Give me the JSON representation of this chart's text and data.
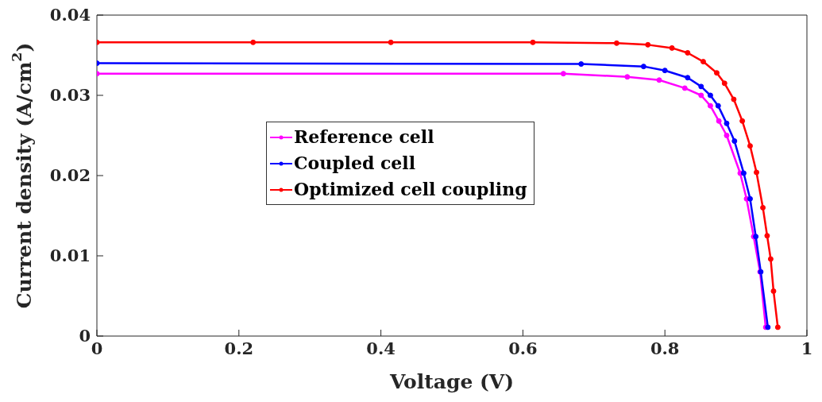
{
  "chart_data": {
    "type": "line",
    "xlabel": "Voltage (V)",
    "ylabel": "Current density (A/cm$^{2}$)",
    "xlim": [
      0,
      1
    ],
    "xticks": [
      0,
      0.2,
      0.4,
      0.6,
      0.8,
      1
    ],
    "ylim": [
      0,
      0.04
    ],
    "yticks": [
      0,
      0.01,
      0.02,
      0.03,
      0.04
    ],
    "legend": "center",
    "marker": "circle",
    "line_style": "solid",
    "series": [
      {
        "name": "Reference cell",
        "color": "#ff00ff",
        "x": [
          0,
          0.657,
          0.747,
          0.792,
          0.828,
          0.851,
          0.864,
          0.876,
          0.887,
          0.906,
          0.915,
          0.925,
          0.934,
          0.942
        ],
        "values": [
          0.0327,
          0.0327,
          0.0323,
          0.0319,
          0.0309,
          0.03,
          0.0287,
          0.0268,
          0.025,
          0.0203,
          0.0171,
          0.0124,
          0.008,
          0.0011
        ]
      },
      {
        "name": "Coupled cell",
        "color": "#0000ff",
        "x": [
          0,
          0.682,
          0.77,
          0.8,
          0.832,
          0.851,
          0.864,
          0.875,
          0.887,
          0.898,
          0.911,
          0.92,
          0.928,
          0.935,
          0.945
        ],
        "values": [
          0.034,
          0.0339,
          0.0336,
          0.0331,
          0.0322,
          0.0311,
          0.03,
          0.0287,
          0.0265,
          0.0243,
          0.0203,
          0.0171,
          0.0124,
          0.008,
          0.0011
        ]
      },
      {
        "name": "Optimized cell coupling",
        "color": "#ff0000",
        "x": [
          0,
          0.22,
          0.414,
          0.614,
          0.732,
          0.776,
          0.81,
          0.832,
          0.854,
          0.873,
          0.884,
          0.897,
          0.909,
          0.92,
          0.929,
          0.938,
          0.944,
          0.949,
          0.953,
          0.959
        ],
        "values": [
          0.0366,
          0.0366,
          0.0366,
          0.0366,
          0.0365,
          0.0363,
          0.0359,
          0.0353,
          0.0342,
          0.0328,
          0.0315,
          0.0295,
          0.0268,
          0.0237,
          0.0204,
          0.016,
          0.0125,
          0.0096,
          0.0056,
          0.0011
        ]
      }
    ]
  }
}
